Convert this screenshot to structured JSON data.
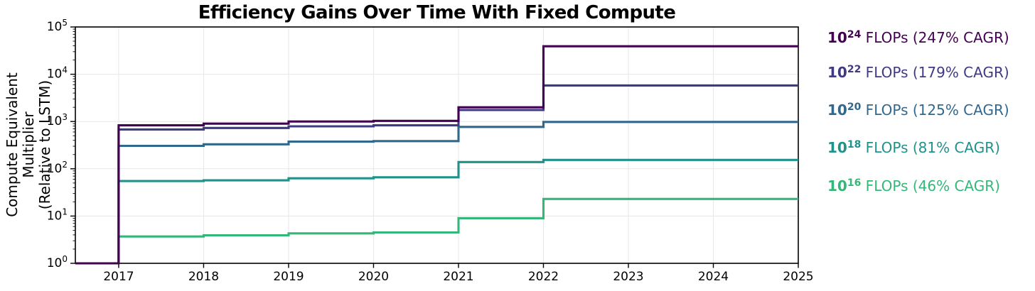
{
  "figure": {
    "title": "Efficiency Gains Over Time With Fixed Compute",
    "background_color": "#ffffff",
    "grid_color": "#e7e7e7",
    "spine_color": "#000000"
  },
  "y_axis": {
    "label_line1": "Compute Equivalent Multiplier",
    "label_line2": "(Relative to LSTM)",
    "scale": "log",
    "tick_base": "10",
    "tick_exponents": [
      0,
      1,
      2,
      3,
      4,
      5
    ]
  },
  "x_axis": {
    "tick_labels": [
      "2017",
      "2018",
      "2019",
      "2020",
      "2021",
      "2022",
      "2023",
      "2024",
      "2025"
    ],
    "tick_years": [
      2017,
      2018,
      2019,
      2020,
      2021,
      2022,
      2023,
      2024,
      2025
    ]
  },
  "legend": {
    "items": [
      {
        "prefix": "10",
        "exponent": "24",
        "suffix": " FLOPs (247% CAGR)",
        "color": "#440154"
      },
      {
        "prefix": "10",
        "exponent": "22",
        "suffix": " FLOPs (179% CAGR)",
        "color": "#3e3a83"
      },
      {
        "prefix": "10",
        "exponent": "20",
        "suffix": " FLOPs (125% CAGR)",
        "color": "#31688e"
      },
      {
        "prefix": "10",
        "exponent": "18",
        "suffix": " FLOPs (81% CAGR)",
        "color": "#21918c"
      },
      {
        "prefix": "10",
        "exponent": "16",
        "suffix": " FLOPs (46% CAGR)",
        "color": "#35b779"
      }
    ]
  },
  "chart_data": {
    "type": "line",
    "subtype": "step-post",
    "title": "Efficiency Gains Over Time With Fixed Compute",
    "xlabel": "",
    "ylabel": "Compute Equivalent Multiplier (Relative to LSTM)",
    "log_y": true,
    "x_range": [
      2016.49,
      2025
    ],
    "y_exp_range": [
      0,
      5
    ],
    "grid": true,
    "legend_position": "right-outside",
    "start_value": 1,
    "step_years": [
      2017,
      2018,
      2019,
      2020,
      2021,
      2022
    ],
    "series": [
      {
        "name": "1e24 FLOPs",
        "cagr_pct": 247,
        "color": "#440154",
        "values": [
          830,
          900,
          1000,
          1030,
          2000,
          39000
        ]
      },
      {
        "name": "1e22 FLOPs",
        "cagr_pct": 179,
        "color": "#3e3a83",
        "values": [
          680,
          730,
          790,
          830,
          1750,
          5800
        ]
      },
      {
        "name": "1e20 FLOPs",
        "cagr_pct": 125,
        "color": "#31688e",
        "values": [
          305,
          330,
          375,
          385,
          770,
          980
        ]
      },
      {
        "name": "1e18 FLOPs",
        "cagr_pct": 81,
        "color": "#21918c",
        "values": [
          55,
          57,
          63,
          66,
          139,
          154
        ]
      },
      {
        "name": "1e16 FLOPs",
        "cagr_pct": 46,
        "color": "#35b779",
        "values": [
          3.7,
          3.9,
          4.3,
          4.5,
          9.0,
          23
        ]
      }
    ],
    "line_width": 3.1
  }
}
